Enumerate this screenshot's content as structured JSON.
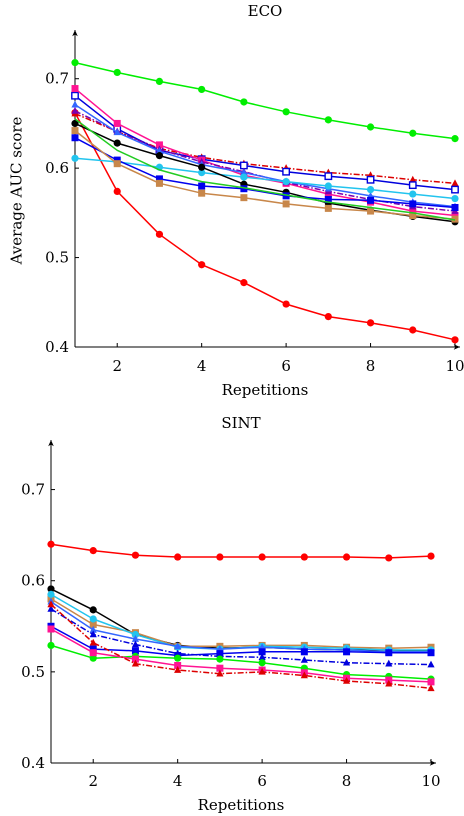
{
  "chart_data": [
    {
      "type": "line",
      "title": "ECO",
      "xlabel": "Repetitions",
      "ylabel": "Average AUC score",
      "x": [
        1,
        2,
        3,
        4,
        5,
        6,
        7,
        8,
        9,
        10
      ],
      "xlim": [
        1,
        10
      ],
      "ylim": [
        0.4,
        0.75
      ],
      "xticks": [
        2,
        4,
        6,
        8,
        10
      ],
      "yticks": [
        0.4,
        0.5,
        0.6,
        0.7
      ],
      "xtick_labels": [
        "2",
        "4",
        "6",
        "8",
        "10"
      ],
      "ytick_labels": [
        "0.4",
        "0.5",
        "0.6",
        "0.7"
      ],
      "grid": false,
      "legend": "none",
      "series": [
        {
          "color": "#00ee00",
          "marker": "circle",
          "dash": "solid",
          "values": [
            0.718,
            0.707,
            0.697,
            0.688,
            0.674,
            0.663,
            0.654,
            0.646,
            0.639,
            0.633
          ]
        },
        {
          "color": "#ff0000",
          "marker": "circle",
          "dash": "solid",
          "values": [
            0.662,
            0.574,
            0.526,
            0.492,
            0.472,
            0.448,
            0.434,
            0.427,
            0.419,
            0.408
          ]
        },
        {
          "color": "#dd0000",
          "marker": "triangle",
          "dash": "dashdot",
          "values": [
            0.661,
            0.641,
            0.622,
            0.612,
            0.605,
            0.6,
            0.595,
            0.592,
            0.587,
            0.583
          ]
        },
        {
          "color": "#0000dd",
          "marker": "square-open",
          "dash": "solid",
          "values": [
            0.681,
            0.644,
            0.62,
            0.61,
            0.603,
            0.596,
            0.591,
            0.587,
            0.581,
            0.576
          ]
        },
        {
          "color": "#ff1493",
          "marker": "square",
          "dash": "solid",
          "values": [
            0.689,
            0.65,
            0.626,
            0.609,
            0.592,
            0.583,
            0.571,
            0.562,
            0.552,
            0.547
          ]
        },
        {
          "color": "#7b00b0",
          "marker": "triangle",
          "dash": "dashdot",
          "values": [
            0.664,
            0.641,
            0.621,
            0.607,
            0.596,
            0.584,
            0.574,
            0.565,
            0.557,
            0.552
          ]
        },
        {
          "color": "#3366ff",
          "marker": "triangle",
          "dash": "solid",
          "values": [
            0.671,
            0.64,
            0.619,
            0.604,
            0.595,
            0.585,
            0.577,
            0.569,
            0.562,
            0.557
          ]
        },
        {
          "color": "#22c4ee",
          "marker": "circle",
          "dash": "solid",
          "values": [
            0.611,
            0.607,
            0.601,
            0.595,
            0.59,
            0.585,
            0.58,
            0.576,
            0.571,
            0.566
          ]
        },
        {
          "color": "#000000",
          "marker": "circle",
          "dash": "solid",
          "values": [
            0.65,
            0.628,
            0.614,
            0.601,
            0.582,
            0.573,
            0.561,
            0.553,
            0.546,
            0.54
          ]
        },
        {
          "color": "#0000ee",
          "marker": "square",
          "dash": "solid",
          "values": [
            0.634,
            0.609,
            0.588,
            0.58,
            0.577,
            0.569,
            0.565,
            0.564,
            0.56,
            0.556
          ]
        },
        {
          "color": "#c8874a",
          "marker": "square",
          "dash": "solid",
          "values": [
            0.642,
            0.605,
            0.583,
            0.572,
            0.567,
            0.56,
            0.555,
            0.552,
            0.547,
            0.543
          ]
        },
        {
          "color": "#22cc22",
          "marker": "none",
          "dash": "solid",
          "values": [
            0.655,
            0.62,
            0.598,
            0.585,
            0.578,
            0.57,
            0.562,
            0.556,
            0.55,
            0.542
          ]
        }
      ]
    },
    {
      "type": "line",
      "title": "SINT",
      "xlabel": "Repetitions",
      "ylabel": "",
      "x": [
        1,
        2,
        3,
        4,
        5,
        6,
        7,
        8,
        9,
        10
      ],
      "xlim": [
        1,
        10
      ],
      "ylim": [
        0.4,
        0.75
      ],
      "xticks": [
        2,
        4,
        6,
        8,
        10
      ],
      "yticks": [
        0.4,
        0.5,
        0.6,
        0.7
      ],
      "xtick_labels": [
        "2",
        "4",
        "6",
        "8",
        "10"
      ],
      "ytick_labels": [
        "0.4",
        "0.5",
        "0.6",
        "0.7"
      ],
      "grid": false,
      "legend": "none",
      "series": [
        {
          "color": "#ff0000",
          "marker": "circle",
          "dash": "solid",
          "values": [
            0.64,
            0.633,
            0.628,
            0.626,
            0.626,
            0.626,
            0.626,
            0.626,
            0.625,
            0.627
          ]
        },
        {
          "color": "#000000",
          "marker": "circle",
          "dash": "solid",
          "values": [
            0.591,
            0.568,
            0.541,
            0.529,
            0.526,
            0.527,
            0.525,
            0.524,
            0.524,
            0.523
          ]
        },
        {
          "color": "#c8874a",
          "marker": "square",
          "dash": "solid",
          "values": [
            0.58,
            0.552,
            0.543,
            0.528,
            0.528,
            0.529,
            0.529,
            0.527,
            0.526,
            0.527
          ]
        },
        {
          "color": "#22c4ee",
          "marker": "circle",
          "dash": "solid",
          "values": [
            0.585,
            0.558,
            0.541,
            0.527,
            0.525,
            0.528,
            0.527,
            0.526,
            0.524,
            0.524
          ]
        },
        {
          "color": "#3366ff",
          "marker": "triangle",
          "dash": "solid",
          "values": [
            0.577,
            0.546,
            0.536,
            0.528,
            0.525,
            0.527,
            0.525,
            0.524,
            0.522,
            0.522
          ]
        },
        {
          "color": "#0000ee",
          "marker": "square",
          "dash": "solid",
          "values": [
            0.55,
            0.525,
            0.523,
            0.518,
            0.52,
            0.522,
            0.522,
            0.522,
            0.521,
            0.521
          ]
        },
        {
          "color": "#0000dd",
          "marker": "triangle",
          "dash": "dashdot",
          "values": [
            0.569,
            0.541,
            0.53,
            0.52,
            0.517,
            0.516,
            0.513,
            0.51,
            0.509,
            0.508
          ]
        },
        {
          "color": "#00ee00",
          "marker": "circle",
          "dash": "solid",
          "values": [
            0.529,
            0.515,
            0.517,
            0.515,
            0.514,
            0.51,
            0.504,
            0.497,
            0.495,
            0.492
          ]
        },
        {
          "color": "#ff1493",
          "marker": "square",
          "dash": "solid",
          "values": [
            0.547,
            0.521,
            0.514,
            0.507,
            0.504,
            0.502,
            0.499,
            0.493,
            0.491,
            0.489
          ]
        },
        {
          "color": "#dd0000",
          "marker": "triangle",
          "dash": "dashdot",
          "values": [
            0.574,
            0.532,
            0.509,
            0.502,
            0.498,
            0.5,
            0.496,
            0.49,
            0.487,
            0.482
          ]
        }
      ]
    }
  ]
}
